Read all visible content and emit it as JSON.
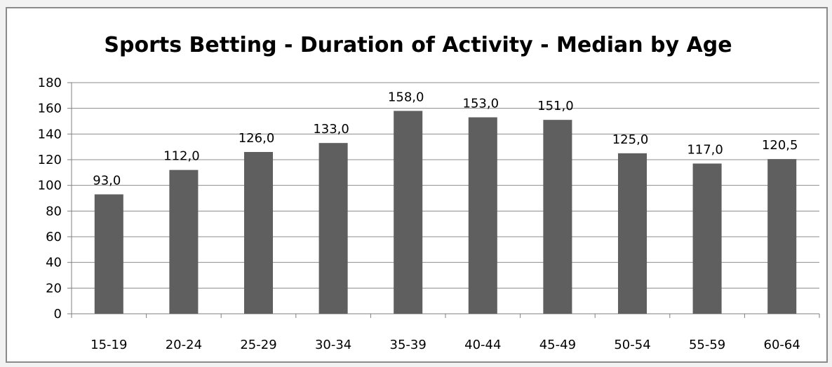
{
  "chart_data": {
    "type": "bar",
    "title": "Sports Betting - Duration of Activity - Median by Age",
    "xlabel": "",
    "ylabel": "",
    "categories": [
      "15-19",
      "20-24",
      "25-29",
      "30-34",
      "35-39",
      "40-44",
      "45-49",
      "50-54",
      "55-59",
      "60-64"
    ],
    "values": [
      93.0,
      112.0,
      126.0,
      133.0,
      158.0,
      153.0,
      151.0,
      125.0,
      117.0,
      120.5
    ],
    "data_labels": [
      "93,0",
      "112,0",
      "126,0",
      "133,0",
      "158,0",
      "153,0",
      "151,0",
      "125,0",
      "117,0",
      "120,5"
    ],
    "ylim": [
      0,
      180
    ],
    "y_ticks": [
      0,
      20,
      40,
      60,
      80,
      100,
      120,
      140,
      160,
      180
    ],
    "grid": true,
    "legend": "none",
    "colors": {
      "bar": "#5f5f5f",
      "grid": "#8c8c8c",
      "axis": "#7f7f7f",
      "text": "#000000",
      "frame": "#8a8a8a"
    }
  }
}
